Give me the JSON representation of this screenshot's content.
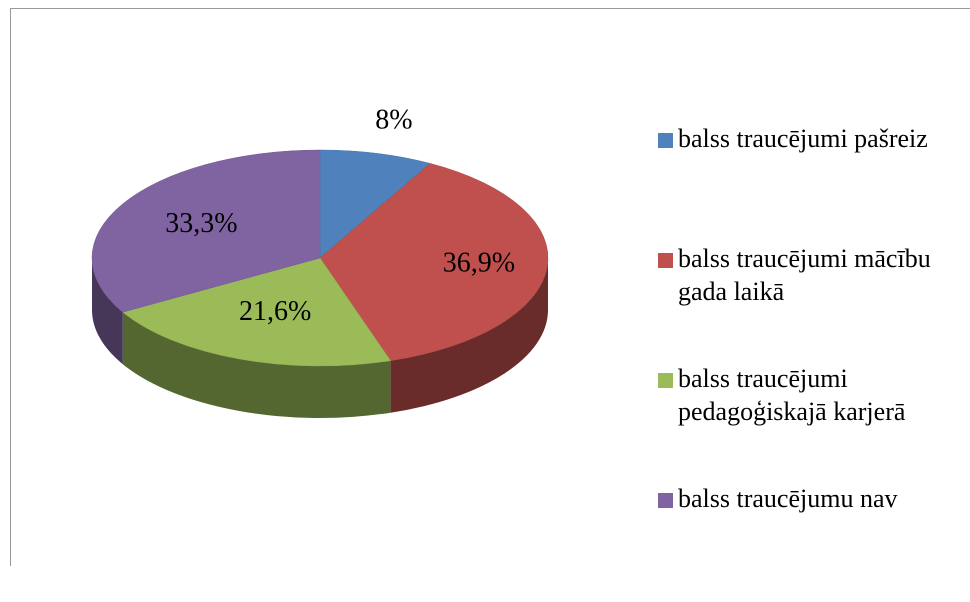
{
  "chart_data": {
    "type": "pie",
    "categories": [
      "balss traucējumi pašreiz",
      "balss traucējumi mācību gada laikā",
      "balss traucējumi pedagoģiskajā karjerā",
      "balss traucējumu nav"
    ],
    "values": [
      8,
      36.9,
      21.6,
      33.3
    ],
    "value_labels": [
      "8%",
      "36,9%",
      "21,6%",
      "33,3%"
    ],
    "colors": [
      "#4f81bd",
      "#c0504d",
      "#9bbb59",
      "#8064a2"
    ],
    "legend": "right"
  }
}
